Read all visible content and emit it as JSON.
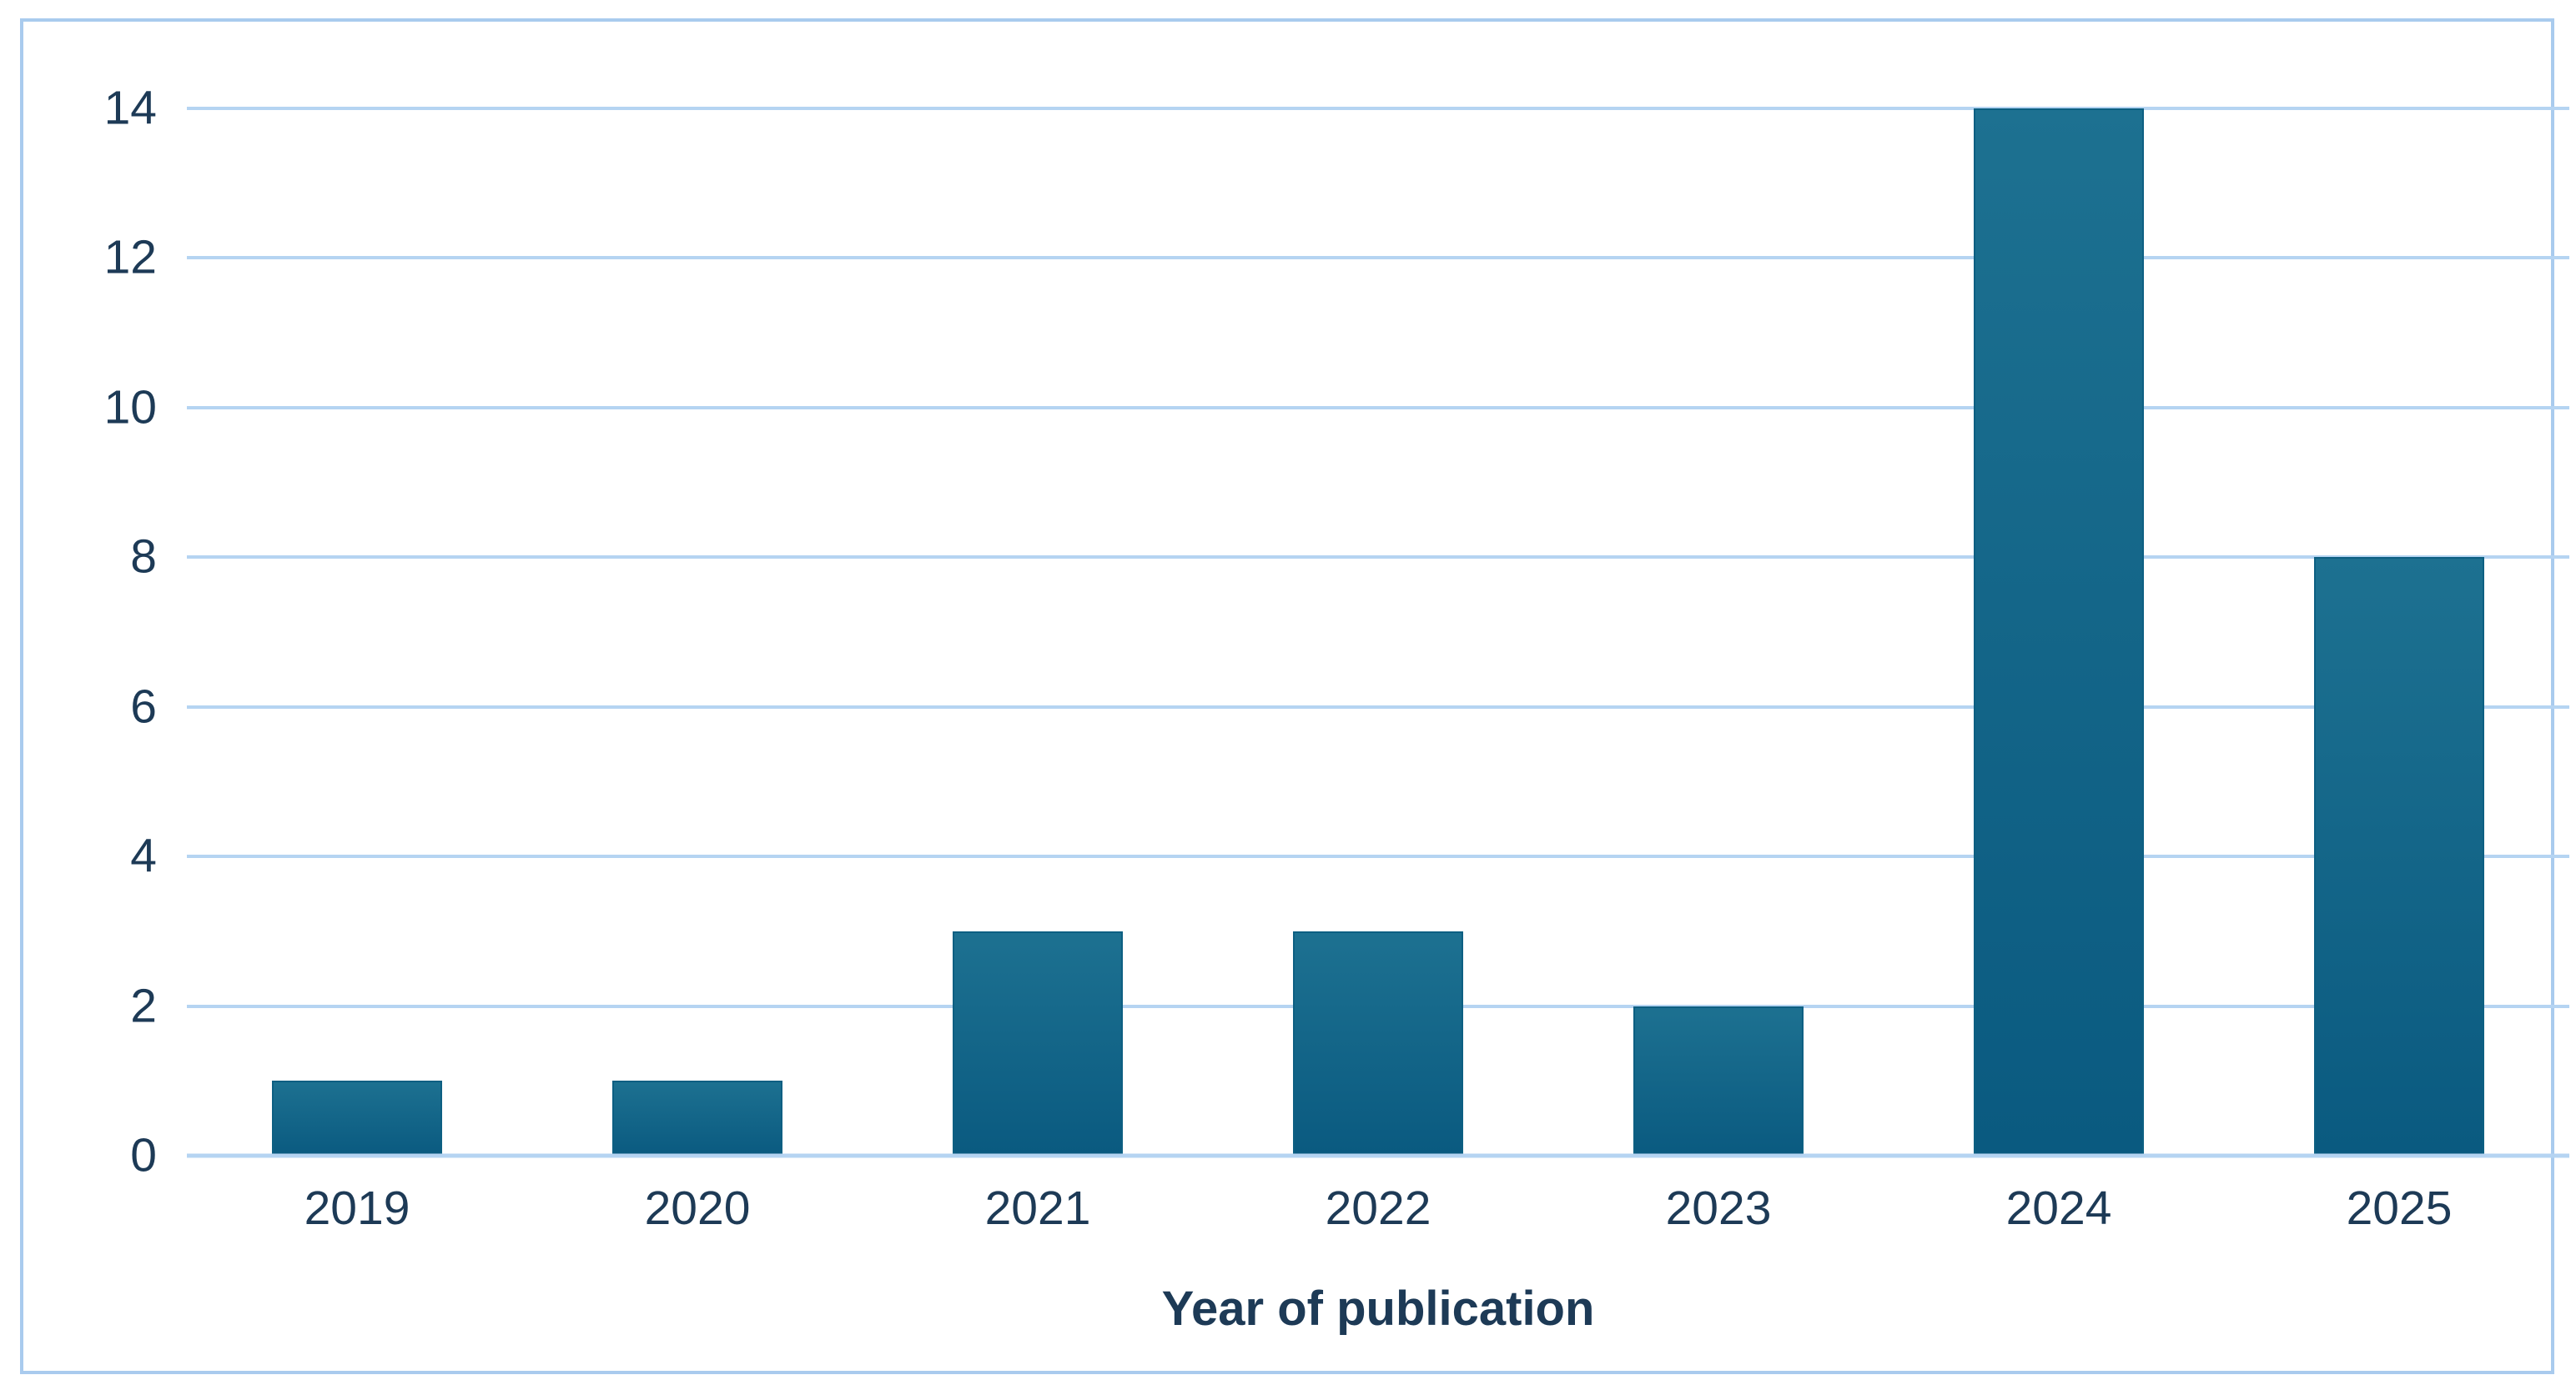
{
  "chart_data": {
    "type": "bar",
    "title": "",
    "categories": [
      "2019",
      "2020",
      "2021",
      "2022",
      "2023",
      "2024",
      "2025"
    ],
    "values": [
      1,
      1,
      3,
      3,
      2,
      14,
      8
    ],
    "xlabel": "Year of publication",
    "ylabel": "",
    "ylim": [
      0,
      14
    ],
    "yticks": [
      0,
      2,
      4,
      6,
      8,
      10,
      12,
      14
    ],
    "grid": true,
    "legend": "none",
    "colors": {
      "bar_gradient_top": "#1d7191",
      "bar_gradient_bottom": "#0a5a80",
      "bar_edge": "#0d5f82",
      "gridline": "#b5d4f2",
      "baseline": "#b5d4f2",
      "frame_border": "#a9cbee",
      "label_text": "#1d3a56",
      "background": "#ffffff"
    }
  }
}
